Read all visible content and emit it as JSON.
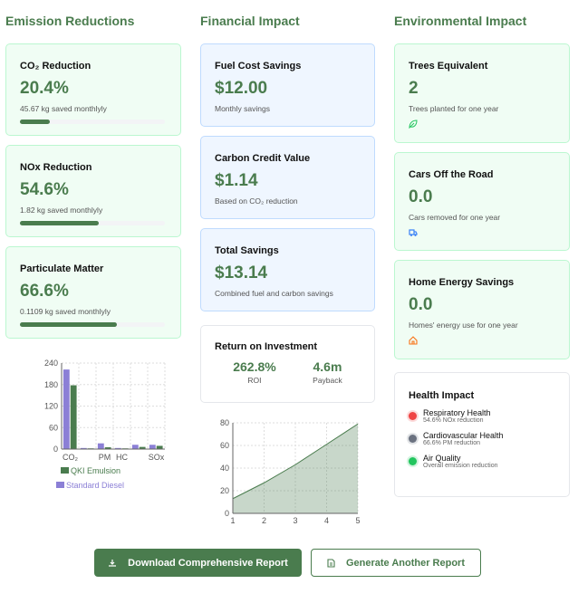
{
  "headings": {
    "emission": "Emission Reductions",
    "financial": "Financial Impact",
    "environmental": "Environmental Impact"
  },
  "emission_cards": [
    {
      "title": "CO₂ Reduction",
      "value": "20.4%",
      "sub": "45.67 kg saved monthlyly",
      "progress": 20.4
    },
    {
      "title": "NOx Reduction",
      "value": "54.6%",
      "sub": "1.82 kg saved monthlyly",
      "progress": 54.6
    },
    {
      "title": "Particulate Matter",
      "value": "66.6%",
      "sub": "0.1109 kg saved monthlyly",
      "progress": 66.6
    }
  ],
  "financial_cards": [
    {
      "title": "Fuel Cost Savings",
      "value": "$12.00",
      "sub": "Monthly savings"
    },
    {
      "title": "Carbon Credit Value",
      "value": "$1.14",
      "sub": "Based on CO₂ reduction"
    },
    {
      "title": "Total Savings",
      "value": "$13.14",
      "sub": "Combined fuel and carbon savings"
    }
  ],
  "roi": {
    "title": "Return on Investment",
    "roi_value": "262.8%",
    "roi_label": "ROI",
    "payback_value": "4.6m",
    "payback_label": "Payback"
  },
  "env_cards": [
    {
      "title": "Trees Equivalent",
      "value": "2",
      "sub": "Trees planted for one year",
      "icon": "leaf-icon",
      "color": "#22c55e"
    },
    {
      "title": "Cars Off the Road",
      "value": "0.0",
      "sub": "Cars removed for one year",
      "icon": "truck-icon",
      "color": "#3b82f6"
    },
    {
      "title": "Home Energy Savings",
      "value": "0.0",
      "sub": "Homes' energy use for one year",
      "icon": "home-icon",
      "color": "#f97316"
    }
  ],
  "health": {
    "title": "Health Impact",
    "items": [
      {
        "label": "Respiratory Health",
        "sub": "54.6% NOx reduction",
        "color": "#ef4444"
      },
      {
        "label": "Cardiovascular Health",
        "sub": "66.6% PM reduction",
        "color": "#6b7280"
      },
      {
        "label": "Air Quality",
        "sub": "Overall emission reduction",
        "color": "#22c55e"
      }
    ]
  },
  "buttons": {
    "download": "Download Comprehensive Report",
    "generate": "Generate Another Report"
  },
  "chart_data": [
    {
      "type": "bar",
      "categories": [
        "CO₂",
        "",
        "PM",
        "HC",
        "",
        "SOx"
      ],
      "series": [
        {
          "name": "Standard Diesel",
          "color": "#8b7fd6",
          "values": [
            222,
            3,
            16,
            3,
            12,
            12
          ]
        },
        {
          "name": "QKI Emulsion",
          "color": "#4a7c4e",
          "values": [
            178,
            2,
            5,
            2,
            6,
            9
          ]
        }
      ],
      "ylim": [
        0,
        240
      ],
      "yticks": [
        0,
        60,
        120,
        180,
        240
      ],
      "grid": true,
      "legend": "bottom"
    },
    {
      "type": "area",
      "x": [
        1,
        2,
        3,
        4,
        5
      ],
      "y": [
        13,
        27,
        43,
        61,
        79
      ],
      "xlim": [
        1,
        5
      ],
      "ylim": [
        0,
        80
      ],
      "yticks": [
        0,
        20,
        40,
        60,
        80
      ],
      "grid": true,
      "color": "#4a7c4e"
    }
  ]
}
